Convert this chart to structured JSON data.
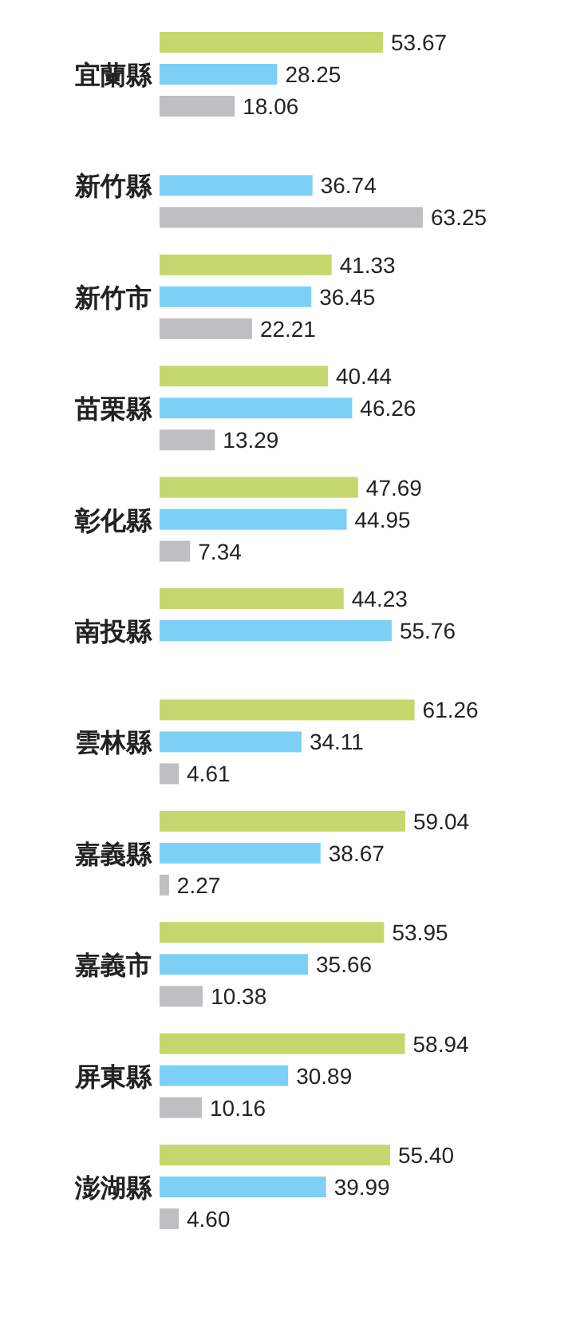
{
  "chart_data": {
    "type": "bar",
    "orientation": "horizontal",
    "categories": [
      "宜蘭縣",
      "新竹縣",
      "新竹市",
      "苗栗縣",
      "彰化縣",
      "南投縣",
      "雲林縣",
      "嘉義縣",
      "嘉義市",
      "屏東縣",
      "澎湖縣"
    ],
    "series": [
      {
        "color": "#c5d86d",
        "values": [
          53.67,
          null,
          41.33,
          40.44,
          47.69,
          44.23,
          61.26,
          59.04,
          53.95,
          58.94,
          55.4
        ],
        "value_labels": [
          "53.67",
          null,
          "41.33",
          "40.44",
          "47.69",
          "44.23",
          "61.26",
          "59.04",
          "53.95",
          "58.94",
          "55.40"
        ]
      },
      {
        "color": "#7dd0f5",
        "values": [
          28.25,
          36.74,
          36.45,
          46.26,
          44.95,
          55.76,
          34.11,
          38.67,
          35.66,
          30.89,
          39.99
        ],
        "value_labels": [
          "28.25",
          "36.74",
          "36.45",
          "46.26",
          "44.95",
          "55.76",
          "34.11",
          "38.67",
          "35.66",
          "30.89",
          "39.99"
        ]
      },
      {
        "color": "#bdbfc1",
        "values": [
          18.06,
          63.25,
          22.21,
          13.29,
          7.34,
          null,
          4.61,
          2.27,
          10.38,
          10.16,
          4.6
        ],
        "value_labels": [
          "18.06",
          "63.25",
          "22.21",
          "13.29",
          "7.34",
          null,
          "4.61",
          "2.27",
          "10.38",
          "10.16",
          "4.60"
        ]
      }
    ]
  }
}
